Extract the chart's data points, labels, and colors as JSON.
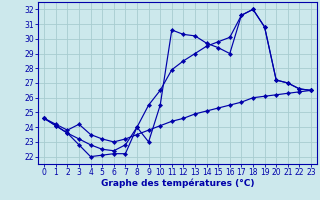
{
  "bg_color": "#cce8ec",
  "grid_color": "#a8ccd0",
  "line_color": "#0000aa",
  "xlim": [
    -0.5,
    23.5
  ],
  "ylim": [
    21.5,
    32.5
  ],
  "xticks": [
    0,
    1,
    2,
    3,
    4,
    5,
    6,
    7,
    8,
    9,
    10,
    11,
    12,
    13,
    14,
    15,
    16,
    17,
    18,
    19,
    20,
    21,
    22,
    23
  ],
  "yticks": [
    22,
    23,
    24,
    25,
    26,
    27,
    28,
    29,
    30,
    31,
    32
  ],
  "xlabel": "Graphe des températures (°C)",
  "line1_x": [
    0,
    1,
    2,
    3,
    4,
    5,
    6,
    7,
    8,
    9,
    10,
    11,
    12,
    13,
    14,
    15,
    16,
    17,
    18,
    19,
    20,
    21,
    22,
    23
  ],
  "line1_y": [
    24.6,
    24.1,
    23.6,
    22.8,
    22.0,
    22.1,
    22.2,
    22.2,
    24.0,
    23.0,
    25.5,
    30.6,
    30.3,
    30.2,
    29.7,
    29.4,
    29.0,
    31.6,
    32.0,
    30.8,
    27.2,
    27.0,
    26.6,
    26.5
  ],
  "line2_x": [
    0,
    1,
    2,
    3,
    4,
    5,
    6,
    7,
    8,
    9,
    10,
    11,
    12,
    13,
    14,
    15,
    16,
    17,
    18,
    19,
    20,
    21,
    22,
    23
  ],
  "line2_y": [
    24.6,
    24.1,
    23.6,
    23.2,
    22.8,
    22.5,
    22.4,
    22.8,
    24.0,
    25.5,
    26.5,
    27.9,
    28.5,
    29.0,
    29.5,
    29.8,
    30.1,
    31.6,
    32.0,
    30.8,
    27.2,
    27.0,
    26.6,
    26.5
  ],
  "line3_x": [
    0,
    1,
    2,
    3,
    4,
    5,
    6,
    7,
    8,
    9,
    10,
    11,
    12,
    13,
    14,
    15,
    16,
    17,
    18,
    19,
    20,
    21,
    22,
    23
  ],
  "line3_y": [
    24.6,
    24.2,
    23.8,
    24.2,
    23.5,
    23.2,
    23.0,
    23.2,
    23.5,
    23.8,
    24.1,
    24.4,
    24.6,
    24.9,
    25.1,
    25.3,
    25.5,
    25.7,
    26.0,
    26.1,
    26.2,
    26.3,
    26.4,
    26.5
  ]
}
